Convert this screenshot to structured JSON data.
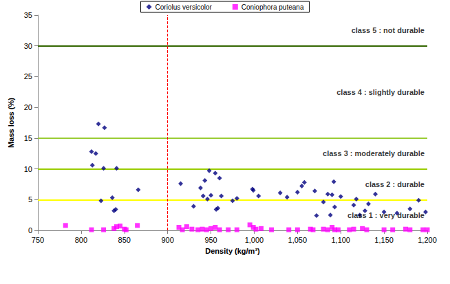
{
  "chart_data": {
    "type": "scatter",
    "x_label": "Density (kg/m³)",
    "y_label": "Mass loss (%)",
    "xlim": [
      750,
      1200
    ],
    "xticks": [
      750,
      800,
      850,
      900,
      950,
      1000,
      1050,
      1100,
      1150,
      1200
    ],
    "ylim": [
      0,
      35
    ],
    "yticks": [
      0,
      5,
      10,
      15,
      20,
      25,
      30,
      35
    ],
    "grid": false,
    "legend": "top",
    "series": [
      {
        "name": "Coriolus versicolor",
        "color": "#000080",
        "marker": "diamond",
        "x": [
          812,
          813,
          817,
          820,
          823,
          826,
          827,
          836,
          838,
          840,
          841,
          866,
          915,
          930,
          938,
          941,
          943,
          946,
          948,
          950,
          955,
          956,
          958,
          960,
          962,
          975,
          980,
          998,
          999,
          1005,
          1030,
          1038,
          1050,
          1055,
          1058,
          1070,
          1072,
          1080,
          1085,
          1088,
          1090,
          1092,
          1093,
          1100,
          1115,
          1118,
          1122,
          1128,
          1132,
          1140,
          1150,
          1165,
          1180,
          1190,
          1198
        ],
        "values": [
          12.8,
          10.6,
          12.5,
          17.3,
          4.8,
          10.1,
          16.7,
          5.3,
          3.2,
          3.4,
          10.1,
          6.6,
          7.6,
          3.9,
          6.9,
          5.6,
          8.1,
          5.1,
          9.7,
          5.7,
          9.3,
          3.4,
          3.6,
          8.5,
          5.6,
          4.8,
          5.2,
          6.7,
          6.5,
          5.6,
          6.1,
          5.4,
          6.2,
          7.2,
          7.8,
          6.4,
          2.4,
          4.6,
          5.9,
          2.5,
          5.8,
          7.9,
          3.8,
          5.5,
          4.1,
          5.1,
          2.5,
          3.2,
          4.3,
          5.9,
          3.0,
          2.8,
          3.5,
          4.9,
          3.0
        ]
      },
      {
        "name": "Coniophora puteana",
        "color": "#ff00ff",
        "marker": "square",
        "x": [
          782,
          812,
          826,
          838,
          841,
          845,
          850,
          852,
          865,
          913,
          917,
          922,
          928,
          935,
          940,
          945,
          950,
          955,
          960,
          970,
          980,
          995,
          999,
          1002,
          1008,
          1020,
          1040,
          1050,
          1065,
          1068,
          1080,
          1085,
          1090,
          1093,
          1097,
          1110,
          1115,
          1125,
          1130,
          1150,
          1160,
          1175,
          1180,
          1195,
          1200
        ],
        "values": [
          0.8,
          0.1,
          0.1,
          0.3,
          0.6,
          0.7,
          0.2,
          0.1,
          0.8,
          0.5,
          0.1,
          0.6,
          0.2,
          0.1,
          0.2,
          0.1,
          0.3,
          0.5,
          0.1,
          0.1,
          0.1,
          0.9,
          0.5,
          0.2,
          0.3,
          0.1,
          0.1,
          0.1,
          0.2,
          0.1,
          0.2,
          0.1,
          0.5,
          0.1,
          0.1,
          0.1,
          0.2,
          0.3,
          0.1,
          0.1,
          0.1,
          0.2,
          0.1,
          0.1,
          0.1
        ]
      }
    ],
    "thresholds": [
      {
        "value": 5,
        "color": "#ffff00"
      },
      {
        "value": 10,
        "color": "#99cc00"
      },
      {
        "value": 15,
        "color": "#99cc33"
      },
      {
        "value": 30,
        "color": "#336600"
      }
    ],
    "class_bands": [
      {
        "label": "class 1 : very durable",
        "from": 0,
        "to": 5
      },
      {
        "label": "class 2 : durable",
        "from": 5,
        "to": 10
      },
      {
        "label": "class 3 : moderately durable",
        "from": 10,
        "to": 15
      },
      {
        "label": "class 4 : slightly durable",
        "from": 15,
        "to": 30
      },
      {
        "label": "class 5 : not durable",
        "from": 30,
        "to": 35
      }
    ],
    "reference_x": {
      "value": 900,
      "color": "#ff0000",
      "line_style": "dashed"
    }
  }
}
